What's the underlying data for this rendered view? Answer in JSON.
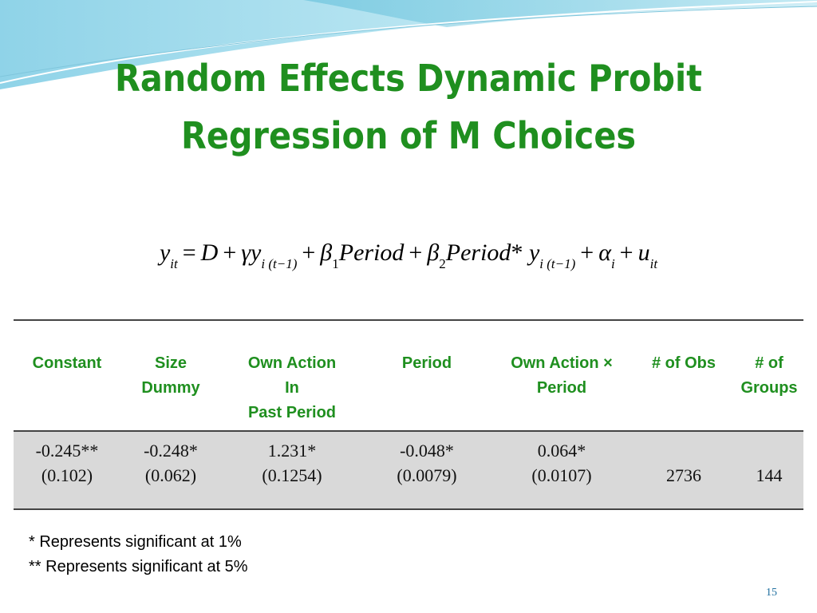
{
  "slide": {
    "title": "Random Effects Dynamic Probit Regression of M Choices",
    "page_number": "15",
    "accent_color": "#1f8f1f"
  },
  "equation": {
    "text": "y_it = D + γ y_i(t−1) + β_1 Period + β_2 Period * y_i(t−1) + α_i + u_it"
  },
  "table": {
    "headers": [
      [
        "Constant"
      ],
      [
        "Size",
        "Dummy"
      ],
      [
        "Own Action",
        "In",
        "Past Period"
      ],
      [
        "Period"
      ],
      [
        "Own Action ×",
        "Period"
      ],
      [
        "# of Obs"
      ],
      [
        "# of",
        "Groups"
      ]
    ],
    "row": [
      [
        "-0.245**",
        "(0.102)"
      ],
      [
        "-0.248*",
        "(0.062)"
      ],
      [
        "1.231*",
        "(0.1254)"
      ],
      [
        "-0.048*",
        "(0.0079)"
      ],
      [
        "0.064*",
        "(0.0107)"
      ],
      [
        "2736"
      ],
      [
        "144"
      ]
    ]
  },
  "notes": [
    "* Represents significant at 1%",
    "** Represents significant at 5%"
  ]
}
